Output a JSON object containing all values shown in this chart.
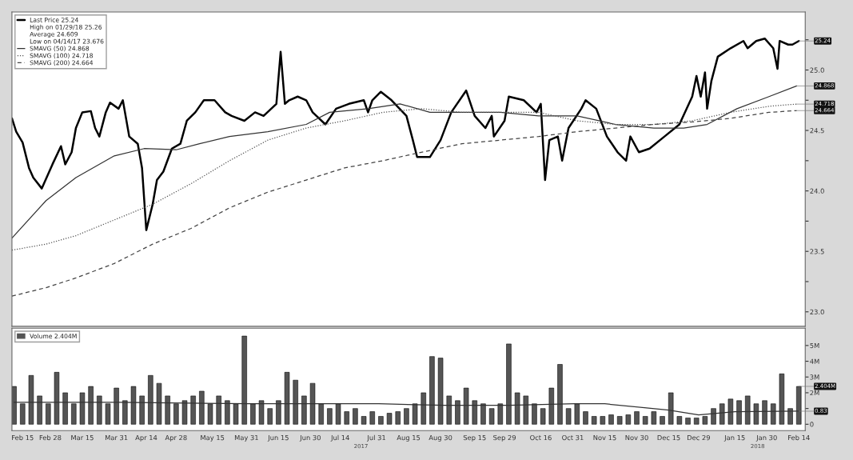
{
  "chart_data": [
    {
      "type": "line",
      "xlim": [
        "2017-02-10",
        "2018-02-17"
      ],
      "ylim": [
        22.88,
        25.48
      ],
      "yticks": [
        {
          "value": 23.0,
          "label": "23.0"
        },
        {
          "value": 23.25,
          "label": null
        },
        {
          "value": 23.5,
          "label": "23.5"
        },
        {
          "value": 23.75,
          "label": null
        },
        {
          "value": 24.0,
          "label": "24.0"
        },
        {
          "value": 24.25,
          "label": null
        },
        {
          "value": 24.5,
          "label": "24.5"
        },
        {
          "value": 24.75,
          "label": null
        },
        {
          "value": 25.0,
          "label": "25.0"
        },
        {
          "value": 25.25,
          "label": null
        }
      ],
      "tick_labels": "y",
      "legend": "top left",
      "series": [
        {
          "name": "Last Price 25.24",
          "color": "#000000",
          "line_style": "solid",
          "x": [
            "2017-02-10",
            "2017-02-12",
            "2017-02-15",
            "2017-02-18",
            "2017-02-20",
            "2017-02-24",
            "2017-02-27",
            "2017-03-01",
            "2017-03-05",
            "2017-03-07",
            "2017-03-10",
            "2017-03-12",
            "2017-03-15",
            "2017-03-19",
            "2017-03-21",
            "2017-03-23",
            "2017-03-26",
            "2017-03-28",
            "2017-04-01",
            "2017-04-03",
            "2017-04-06",
            "2017-04-10",
            "2017-04-12",
            "2017-04-14",
            "2017-04-17",
            "2017-04-19",
            "2017-04-22",
            "2017-04-26",
            "2017-04-30",
            "2017-05-03",
            "2017-05-07",
            "2017-05-11",
            "2017-05-16",
            "2017-05-21",
            "2017-05-24",
            "2017-05-30",
            "2017-06-04",
            "2017-06-08",
            "2017-06-14",
            "2017-06-16",
            "2017-06-18",
            "2017-06-20",
            "2017-06-24",
            "2017-06-28",
            "2017-07-01",
            "2017-07-07",
            "2017-07-12",
            "2017-07-18",
            "2017-07-25",
            "2017-07-27",
            "2017-07-29",
            "2017-08-02",
            "2017-08-07",
            "2017-08-14",
            "2017-08-17",
            "2017-08-19",
            "2017-08-25",
            "2017-08-30",
            "2017-09-04",
            "2017-09-11",
            "2017-09-15",
            "2017-09-20",
            "2017-09-23",
            "2017-09-24",
            "2017-09-29",
            "2017-10-01",
            "2017-10-08",
            "2017-10-14",
            "2017-10-16",
            "2017-10-18",
            "2017-10-20",
            "2017-10-24",
            "2017-10-26",
            "2017-10-29",
            "2017-11-04",
            "2017-11-06",
            "2017-11-11",
            "2017-11-16",
            "2017-11-21",
            "2017-11-25",
            "2017-11-27",
            "2017-12-01",
            "2017-12-06",
            "2017-12-13",
            "2017-12-20",
            "2017-12-26",
            "2017-12-28",
            "2017-12-30",
            "2018-01-01",
            "2018-01-02",
            "2018-01-04",
            "2018-01-07",
            "2018-01-13",
            "2018-01-19",
            "2018-01-21",
            "2018-01-25",
            "2018-01-29",
            "2018-02-02",
            "2018-02-04",
            "2018-02-05",
            "2018-02-09",
            "2018-02-11",
            "2018-02-14"
          ],
          "values": [
            24.6,
            24.49,
            24.4,
            24.19,
            24.11,
            24.02,
            24.14,
            24.22,
            24.37,
            24.22,
            24.32,
            24.52,
            24.65,
            24.66,
            24.52,
            24.45,
            24.65,
            24.73,
            24.68,
            24.75,
            24.45,
            24.39,
            24.19,
            23.676,
            23.89,
            24.09,
            24.16,
            24.35,
            24.39,
            24.58,
            24.65,
            24.75,
            24.75,
            24.65,
            24.62,
            24.58,
            24.65,
            24.62,
            24.72,
            25.15,
            24.72,
            24.75,
            24.78,
            24.75,
            24.65,
            24.55,
            24.68,
            24.72,
            24.75,
            24.65,
            24.75,
            24.82,
            24.75,
            24.62,
            24.42,
            24.28,
            24.28,
            24.42,
            24.65,
            24.83,
            24.62,
            24.52,
            24.62,
            24.45,
            24.58,
            24.78,
            24.75,
            24.65,
            24.72,
            24.09,
            24.42,
            24.45,
            24.25,
            24.52,
            24.68,
            24.75,
            24.68,
            24.45,
            24.32,
            24.25,
            24.45,
            24.32,
            24.35,
            24.45,
            24.55,
            24.78,
            24.95,
            24.78,
            24.98,
            24.68,
            24.91,
            25.11,
            25.18,
            25.24,
            25.18,
            25.24,
            25.26,
            25.18,
            25.01,
            25.24,
            25.21,
            25.21,
            25.24
          ]
        },
        {
          "name": "SMAVG (50) 24.868",
          "color": "#333333",
          "line_style": "solid",
          "x": [
            "2017-02-10",
            "2017-02-26",
            "2017-03-12",
            "2017-03-30",
            "2017-04-13",
            "2017-04-28",
            "2017-05-09",
            "2017-05-23",
            "2017-06-10",
            "2017-06-28",
            "2017-07-09",
            "2017-07-27",
            "2017-08-11",
            "2017-08-25",
            "2017-09-09",
            "2017-09-27",
            "2017-10-15",
            "2017-11-02",
            "2017-11-20",
            "2017-12-08",
            "2017-12-22",
            "2018-01-02",
            "2018-01-16",
            "2018-01-31",
            "2018-02-13"
          ],
          "values": [
            23.61,
            23.92,
            24.11,
            24.29,
            24.35,
            24.34,
            24.39,
            24.45,
            24.49,
            24.55,
            24.65,
            24.68,
            24.72,
            24.65,
            24.65,
            24.65,
            24.62,
            24.62,
            24.55,
            24.52,
            24.52,
            24.55,
            24.68,
            24.78,
            24.868
          ]
        },
        {
          "name": "SMAVG (100) 24.718",
          "color": "#555555",
          "line_style": "dotted",
          "x": [
            "2017-02-10",
            "2017-02-26",
            "2017-03-12",
            "2017-03-30",
            "2017-04-17",
            "2017-05-05",
            "2017-05-23",
            "2017-06-10",
            "2017-06-28",
            "2017-07-16",
            "2017-08-03",
            "2017-08-21",
            "2017-09-09",
            "2017-09-27",
            "2017-10-15",
            "2017-11-02",
            "2017-11-20",
            "2017-12-08",
            "2017-12-26",
            "2018-01-13",
            "2018-01-31",
            "2018-02-13"
          ],
          "values": [
            23.51,
            23.56,
            23.63,
            23.76,
            23.89,
            24.06,
            24.25,
            24.42,
            24.52,
            24.58,
            24.65,
            24.68,
            24.65,
            24.65,
            24.65,
            24.58,
            24.55,
            24.55,
            24.58,
            24.65,
            24.7,
            24.718
          ]
        },
        {
          "name": "SMAVG (200) 24.664",
          "color": "#444444",
          "line_style": "dashed",
          "x": [
            "2017-02-10",
            "2017-02-26",
            "2017-03-12",
            "2017-03-30",
            "2017-04-17",
            "2017-05-05",
            "2017-05-23",
            "2017-06-10",
            "2017-06-28",
            "2017-07-16",
            "2017-08-03",
            "2017-08-21",
            "2017-09-09",
            "2017-09-27",
            "2017-10-15",
            "2017-11-02",
            "2017-11-20",
            "2017-12-08",
            "2017-12-26",
            "2018-01-13",
            "2018-01-31",
            "2018-02-13"
          ],
          "values": [
            23.13,
            23.2,
            23.28,
            23.4,
            23.56,
            23.69,
            23.86,
            23.99,
            24.09,
            24.19,
            24.25,
            24.32,
            24.39,
            24.42,
            24.45,
            24.49,
            24.52,
            24.55,
            24.57,
            24.6,
            24.65,
            24.664
          ]
        }
      ],
      "annotations": [
        "High on 01/29/18 25.26",
        "Average 24.609",
        "Low on 04/14/17 23.676",
        {
          "text": "25.24",
          "x": "2018-02-14",
          "y": 25.24
        },
        {
          "text": "24.868",
          "x": "2018-02-13",
          "y": 24.868
        },
        {
          "text": "24.718",
          "x": "2018-02-13",
          "y": 24.718
        },
        {
          "text": "24.664",
          "x": "2018-02-13",
          "y": 24.664
        }
      ]
    },
    {
      "type": "bar",
      "xlim": [
        "2017-02-10",
        "2018-02-17"
      ],
      "ylim": [
        -0.4,
        6.1
      ],
      "xticks": [
        {
          "value": "2017-02-15",
          "label": "Feb 15"
        },
        {
          "value": "2017-02-28",
          "label": "Feb 28"
        },
        {
          "value": "2017-03-15",
          "label": "Mar 15"
        },
        {
          "value": "2017-03-31",
          "label": "Mar 31"
        },
        {
          "value": "2017-04-14",
          "label": "Apr 14"
        },
        {
          "value": "2017-04-28",
          "label": "Apr 28"
        },
        {
          "value": "2017-05-15",
          "label": "May 15"
        },
        {
          "value": "2017-05-31",
          "label": "May 31"
        },
        {
          "value": "2017-06-15",
          "label": "Jun 15"
        },
        {
          "value": "2017-06-30",
          "label": "Jun 30"
        },
        {
          "value": "2017-07-14",
          "label": "Jul 14"
        },
        {
          "value": "2017-07-31",
          "label": "Jul 31"
        },
        {
          "value": "2017-08-15",
          "label": "Aug 15"
        },
        {
          "value": "2017-08-30",
          "label": "Aug 30"
        },
        {
          "value": "2017-09-15",
          "label": "Sep 15"
        },
        {
          "value": "2017-09-29",
          "label": "Sep 29"
        },
        {
          "value": "2017-10-16",
          "label": "Oct 16"
        },
        {
          "value": "2017-10-31",
          "label": "Oct 31"
        },
        {
          "value": "2017-11-15",
          "label": "Nov 15"
        },
        {
          "value": "2017-11-30",
          "label": "Nov 30"
        },
        {
          "value": "2017-12-15",
          "label": "Dec 15"
        },
        {
          "value": "2017-12-29",
          "label": "Dec 29"
        },
        {
          "value": "2018-01-15",
          "label": "Jan 15"
        },
        {
          "value": "2018-01-30",
          "label": "Jan 30"
        },
        {
          "value": "2018-02-14",
          "label": "Feb 14"
        }
      ],
      "yticks": [
        0,
        {
          "value": 1,
          "label": null
        },
        {
          "value": 2,
          "label": "2M"
        },
        {
          "value": 3,
          "label": "3M"
        },
        {
          "value": 4,
          "label": "4M"
        },
        {
          "value": 5,
          "label": "5M"
        }
      ],
      "legend": "top left",
      "series": [
        {
          "name": "Volume 2.404M",
          "color": "#555555",
          "x": [
            "2017-02-11",
            "2017-02-15",
            "2017-02-19",
            "2017-02-23",
            "2017-02-27",
            "2017-03-03",
            "2017-03-07",
            "2017-03-11",
            "2017-03-15",
            "2017-03-19",
            "2017-03-23",
            "2017-03-27",
            "2017-03-31",
            "2017-04-04",
            "2017-04-08",
            "2017-04-12",
            "2017-04-16",
            "2017-04-20",
            "2017-04-24",
            "2017-04-28",
            "2017-05-02",
            "2017-05-06",
            "2017-05-10",
            "2017-05-14",
            "2017-05-18",
            "2017-05-22",
            "2017-05-26",
            "2017-05-30",
            "2017-06-03",
            "2017-06-07",
            "2017-06-11",
            "2017-06-15",
            "2017-06-19",
            "2017-06-23",
            "2017-06-27",
            "2017-07-01",
            "2017-07-05",
            "2017-07-09",
            "2017-07-13",
            "2017-07-17",
            "2017-07-21",
            "2017-07-25",
            "2017-07-29",
            "2017-08-02",
            "2017-08-06",
            "2017-08-10",
            "2017-08-14",
            "2017-08-18",
            "2017-08-22",
            "2017-08-26",
            "2017-08-30",
            "2017-09-03",
            "2017-09-07",
            "2017-09-11",
            "2017-09-15",
            "2017-09-19",
            "2017-09-23",
            "2017-09-27",
            "2017-10-01",
            "2017-10-05",
            "2017-10-09",
            "2017-10-13",
            "2017-10-17",
            "2017-10-21",
            "2017-10-25",
            "2017-10-29",
            "2017-11-02",
            "2017-11-06",
            "2017-11-10",
            "2017-11-14",
            "2017-11-18",
            "2017-11-22",
            "2017-11-26",
            "2017-11-30",
            "2017-12-04",
            "2017-12-08",
            "2017-12-12",
            "2017-12-16",
            "2017-12-20",
            "2017-12-24",
            "2017-12-28",
            "2018-01-01",
            "2018-01-05",
            "2018-01-09",
            "2018-01-13",
            "2018-01-17",
            "2018-01-21",
            "2018-01-25",
            "2018-01-29",
            "2018-02-02",
            "2018-02-06",
            "2018-02-10",
            "2018-02-14"
          ],
          "values": [
            2.4,
            1.3,
            3.1,
            1.8,
            1.3,
            3.3,
            2.0,
            1.3,
            2.0,
            2.4,
            1.8,
            1.3,
            2.3,
            1.5,
            2.4,
            1.8,
            3.1,
            2.6,
            1.8,
            1.3,
            1.5,
            1.8,
            2.1,
            1.3,
            1.8,
            1.5,
            1.3,
            5.6,
            1.3,
            1.5,
            1.0,
            1.5,
            3.3,
            2.8,
            1.8,
            2.6,
            1.3,
            1.0,
            1.3,
            0.8,
            1.0,
            0.5,
            0.8,
            0.5,
            0.7,
            0.8,
            1.0,
            1.3,
            2.0,
            4.3,
            4.2,
            1.8,
            1.5,
            2.3,
            1.5,
            1.3,
            1.0,
            1.3,
            5.1,
            2.0,
            1.8,
            1.3,
            1.0,
            2.3,
            3.8,
            1.0,
            1.3,
            0.8,
            0.5,
            0.5,
            0.6,
            0.5,
            0.6,
            0.8,
            0.5,
            0.8,
            0.5,
            2.0,
            0.5,
            0.4,
            0.4,
            0.5,
            1.0,
            1.3,
            1.6,
            1.5,
            1.8,
            1.3,
            1.5,
            1.3,
            3.2,
            1.0,
            2.4
          ]
        },
        {
          "type": "line",
          "color": "#333333",
          "line_style": "solid",
          "x": [
            "2017-02-11",
            "2017-04-01",
            "2017-06-01",
            "2017-08-01",
            "2017-09-01",
            "2017-10-01",
            "2017-11-01",
            "2017-11-15",
            "2017-12-15",
            "2017-12-29",
            "2018-01-15",
            "2018-02-14"
          ],
          "values": [
            1.4,
            1.4,
            1.3,
            1.3,
            1.2,
            1.2,
            1.3,
            1.3,
            0.9,
            0.6,
            0.8,
            0.83
          ]
        }
      ],
      "annotations": [
        {
          "text": "2.404M",
          "x": "2018-02-14",
          "y": 2.404
        },
        {
          "text": "0.83",
          "x": "2018-02-14",
          "y": 0.83
        },
        "2017",
        "2018"
      ]
    }
  ]
}
